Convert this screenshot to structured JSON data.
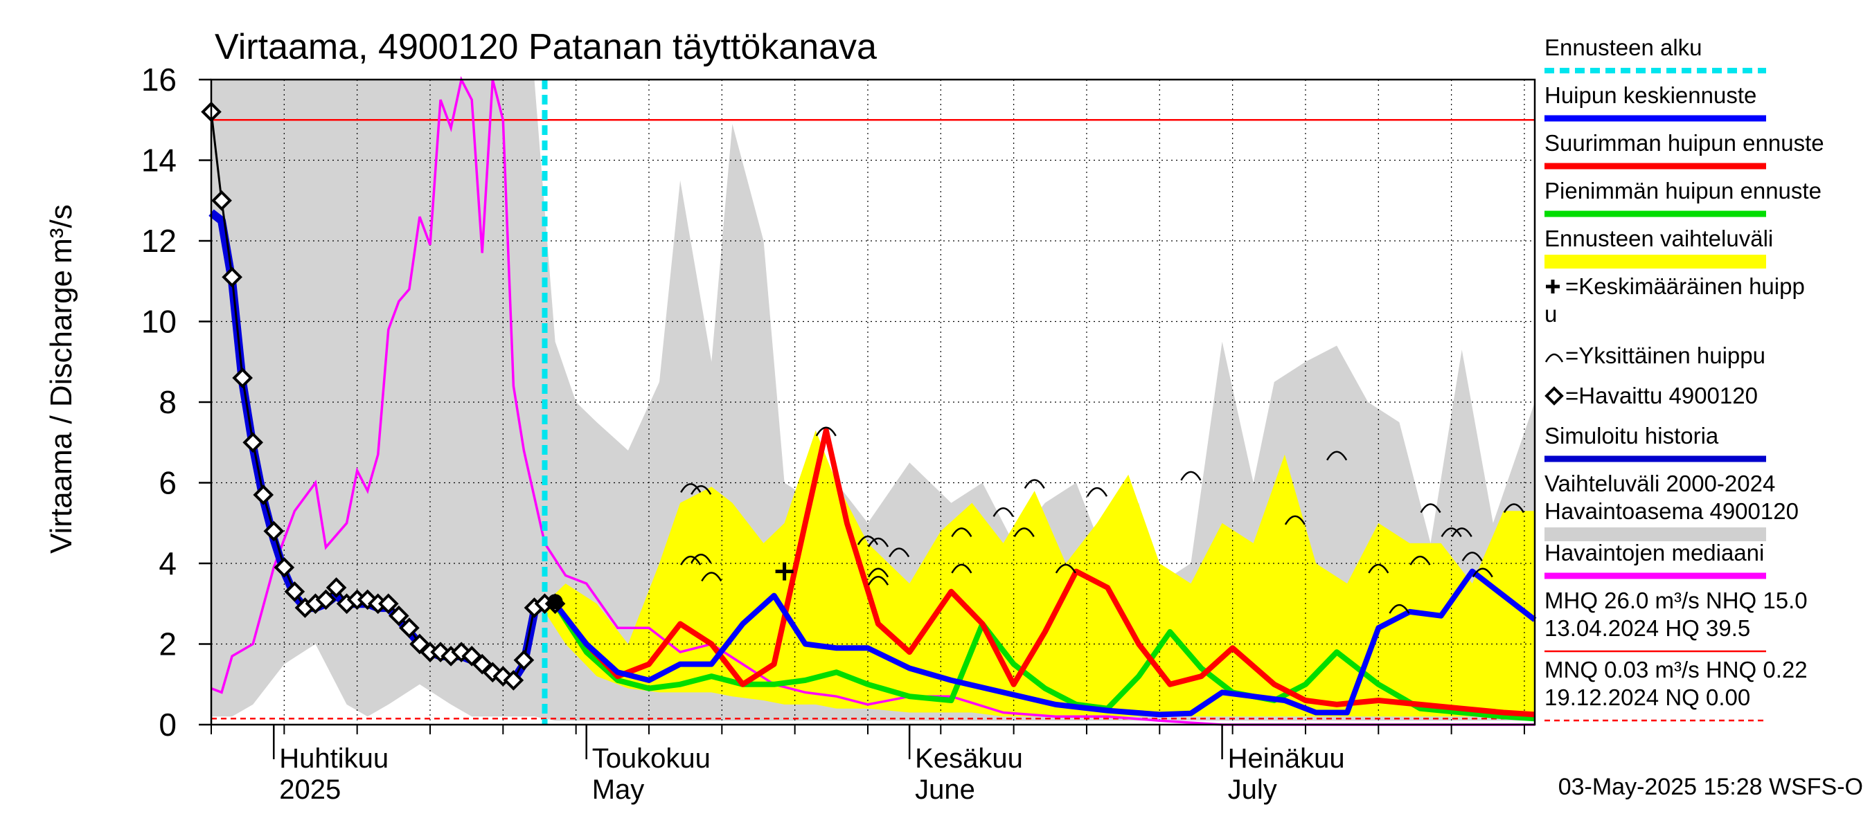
{
  "chart_data": {
    "type": "line",
    "title": "Virtaama, 4900120 Patanan täyttökanava",
    "ylabel": "Virtaama / Discharge",
    "yunit": "m³/s",
    "xlim": [
      "2025-03-26",
      "2025-07-31"
    ],
    "ylim": [
      0,
      16
    ],
    "yticks": [
      0,
      2,
      4,
      6,
      8,
      10,
      12,
      14,
      16
    ],
    "grid": true,
    "legend_position": "right",
    "month_labels": [
      {
        "fi": "Huhtikuu",
        "en": "2025",
        "date": "2025-04-01"
      },
      {
        "fi": "Toukokuu",
        "en": "May",
        "date": "2025-05-01"
      },
      {
        "fi": "Kesäkuu",
        "en": "June",
        "date": "2025-06-01"
      },
      {
        "fi": "Heinäkuu",
        "en": "July",
        "date": "2025-07-01"
      }
    ],
    "forecast_start": "2025-04-27",
    "reference_lines": {
      "upper_red": 15.0,
      "lower_red_dashed": 0.15
    },
    "legend": [
      {
        "label": "Ennusteen alku",
        "color": "#00e5ee",
        "style": "dashed"
      },
      {
        "label": "Huipun keskiennuste",
        "color": "#0000ff",
        "style": "solid"
      },
      {
        "label": "Suurimman huipun ennuste",
        "color": "#ff0000",
        "style": "solid"
      },
      {
        "label": "Pienimmän huipun ennuste",
        "color": "#00dd00",
        "style": "solid"
      },
      {
        "label": "Ennusteen vaihteluväli",
        "color": "#ffff00",
        "style": "band"
      },
      {
        "label": "+=Keskimääräinen huippu",
        "label_line1": "=Keskimääräinen huipp",
        "label_line2": "u",
        "symbol": "plus"
      },
      {
        "label": "=Yksittäinen huippu",
        "symbol": "arc"
      },
      {
        "label": "=Havaittu 4900120",
        "symbol": "diamond"
      },
      {
        "label": "Simuloitu historia",
        "color": "#0000cc",
        "style": "solid"
      },
      {
        "label_line1": "Vaihteluväli 2000-2024",
        "label_line2": " Havaintoasema 4900120",
        "color": "#d0d0d0",
        "style": "band"
      },
      {
        "label": "Havaintojen mediaani",
        "color": "#ff00ff",
        "style": "solid"
      },
      {
        "label_line1": "MHQ 26.0 m³/s NHQ 15.0",
        "label_line2": "13.04.2024 HQ 39.5",
        "color": "#ff0000",
        "style": "solid"
      },
      {
        "label_line1": "MNQ 0.03 m³/s HNQ 0.22",
        "label_line2": "19.12.2024 NQ 0.00",
        "color": "#ff0000",
        "style": "dashed"
      }
    ],
    "footer": "03-May-2025 15:28 WSFS-O",
    "series": {
      "historical_band": {
        "x": [
          "2025-03-26",
          "2025-03-27",
          "2025-03-28",
          "2025-03-30",
          "2025-04-02",
          "2025-04-05",
          "2025-04-08",
          "2025-04-10",
          "2025-04-12",
          "2025-04-15",
          "2025-04-18",
          "2025-04-20",
          "2025-04-22",
          "2025-04-24",
          "2025-04-26",
          "2025-04-28",
          "2025-04-30",
          "2025-05-02",
          "2025-05-05",
          "2025-05-08",
          "2025-05-10",
          "2025-05-13",
          "2025-05-15",
          "2025-05-18",
          "2025-05-20",
          "2025-05-23",
          "2025-05-25",
          "2025-05-28",
          "2025-06-01",
          "2025-06-05",
          "2025-06-08",
          "2025-06-11",
          "2025-06-14",
          "2025-06-17",
          "2025-06-20",
          "2025-06-23",
          "2025-06-25",
          "2025-06-28",
          "2025-07-01",
          "2025-07-04",
          "2025-07-06",
          "2025-07-09",
          "2025-07-12",
          "2025-07-15",
          "2025-07-18",
          "2025-07-21",
          "2025-07-24",
          "2025-07-27",
          "2025-07-31"
        ],
        "high": [
          16,
          16,
          16,
          16,
          16,
          16,
          16,
          16,
          16,
          16,
          16,
          16,
          16,
          16,
          16,
          16,
          16,
          16,
          16,
          16,
          16,
          16,
          16,
          16,
          16,
          16,
          16,
          16,
          16,
          16,
          16,
          16,
          16,
          16,
          16,
          16,
          16,
          16,
          16,
          16,
          16,
          16,
          16,
          16,
          16,
          16,
          16,
          16,
          16
        ],
        "low": [
          0.2,
          0.2,
          0.2,
          0.5,
          1.5,
          2.0,
          0.5,
          0.2,
          0.5,
          1.0,
          0.5,
          0.2,
          0.2,
          0.2,
          0.2,
          0.1,
          0.1,
          0.1,
          0.1,
          0.1,
          0.1,
          0.1,
          0.1,
          0.1,
          0.1,
          0.1,
          0.1,
          0.1,
          0.1,
          0.1,
          0.1,
          0.1,
          0.1,
          0.1,
          0.1,
          0.1,
          0.1,
          0.1,
          0.1,
          0.1,
          0.1,
          0.1,
          0.1,
          0.1,
          0.1,
          0.1,
          0.1,
          0.1,
          0.1
        ],
        "max_visible": [
          16,
          16,
          16,
          16,
          16,
          16,
          16,
          16,
          16,
          16,
          16,
          16,
          16,
          16,
          16,
          9.5,
          8.0,
          7.5,
          6.8,
          8.5,
          13.5,
          9.0,
          14.9,
          12.0,
          6.0,
          5.5,
          6.0,
          5.0,
          6.5,
          5.5,
          6.0,
          4.5,
          5.5,
          6.0,
          4.0,
          5.5,
          3.5,
          4.0,
          9.5,
          6.0,
          8.5,
          9.0,
          9.4,
          8.0,
          7.5,
          4.5,
          9.3,
          5.0,
          8.0
        ]
      },
      "forecast_band": {
        "x": [
          "2025-04-27",
          "2025-04-29",
          "2025-05-02",
          "2025-05-05",
          "2025-05-08",
          "2025-05-10",
          "2025-05-13",
          "2025-05-15",
          "2025-05-18",
          "2025-05-20",
          "2025-05-23",
          "2025-05-25",
          "2025-05-28",
          "2025-06-01",
          "2025-06-04",
          "2025-06-07",
          "2025-06-10",
          "2025-06-13",
          "2025-06-16",
          "2025-06-19",
          "2025-06-22",
          "2025-06-25",
          "2025-06-28",
          "2025-07-01",
          "2025-07-04",
          "2025-07-07",
          "2025-07-10",
          "2025-07-13",
          "2025-07-16",
          "2025-07-19",
          "2025-07-22",
          "2025-07-25",
          "2025-07-28",
          "2025-07-31"
        ],
        "high": [
          3.0,
          3.5,
          3.0,
          2.0,
          4.0,
          5.5,
          5.9,
          5.5,
          4.5,
          5.0,
          7.3,
          6.0,
          4.5,
          3.5,
          4.8,
          5.5,
          4.5,
          5.8,
          4.0,
          5.0,
          6.2,
          4.0,
          3.5,
          5.0,
          4.5,
          6.7,
          4.0,
          3.5,
          5.0,
          4.5,
          4.5,
          3.5,
          5.3,
          5.3
        ],
        "low": [
          2.8,
          2.0,
          1.2,
          0.9,
          0.8,
          0.8,
          0.8,
          0.7,
          0.6,
          0.5,
          0.5,
          0.4,
          0.4,
          0.3,
          0.3,
          0.3,
          0.2,
          0.2,
          0.2,
          0.2,
          0.2,
          0.2,
          0.2,
          0.2,
          0.2,
          0.2,
          0.2,
          0.2,
          0.2,
          0.2,
          0.2,
          0.2,
          0.2,
          0.2
        ]
      },
      "median_obs": {
        "x": [
          "2025-03-26",
          "2025-03-27",
          "2025-03-28",
          "2025-03-30",
          "2025-04-01",
          "2025-04-03",
          "2025-04-05",
          "2025-04-06",
          "2025-04-08",
          "2025-04-09",
          "2025-04-10",
          "2025-04-11",
          "2025-04-12",
          "2025-04-13",
          "2025-04-14",
          "2025-04-15",
          "2025-04-16",
          "2025-04-17",
          "2025-04-18",
          "2025-04-19",
          "2025-04-20",
          "2025-04-21",
          "2025-04-22",
          "2025-04-23",
          "2025-04-24",
          "2025-04-25",
          "2025-04-27",
          "2025-04-29",
          "2025-05-01",
          "2025-05-04",
          "2025-05-07",
          "2025-05-10",
          "2025-05-13",
          "2025-05-16",
          "2025-05-19",
          "2025-05-22",
          "2025-05-25",
          "2025-05-28",
          "2025-06-01",
          "2025-06-05",
          "2025-06-10",
          "2025-06-15",
          "2025-06-20",
          "2025-06-25",
          "2025-07-01",
          "2025-07-10",
          "2025-07-20",
          "2025-07-31"
        ],
        "values": [
          0.9,
          0.8,
          1.7,
          2.0,
          3.9,
          5.3,
          6.0,
          4.4,
          5.0,
          6.3,
          5.8,
          6.7,
          9.8,
          10.5,
          10.8,
          12.6,
          11.9,
          15.5,
          14.8,
          17.5,
          15.5,
          11.7,
          17.5,
          15.0,
          8.4,
          6.8,
          4.5,
          3.7,
          3.5,
          2.4,
          2.4,
          1.8,
          2.0,
          1.5,
          1.0,
          0.8,
          0.7,
          0.5,
          0.7,
          0.7,
          0.3,
          0.2,
          0.2,
          0.1,
          0.0,
          0.0,
          0.0,
          0.0
        ]
      },
      "observed": {
        "x": [
          "2025-03-26",
          "2025-03-27",
          "2025-03-28",
          "2025-03-29",
          "2025-03-30",
          "2025-03-31",
          "2025-04-01",
          "2025-04-02",
          "2025-04-03",
          "2025-04-04",
          "2025-04-05",
          "2025-04-06",
          "2025-04-07",
          "2025-04-08",
          "2025-04-09",
          "2025-04-10",
          "2025-04-11",
          "2025-04-12",
          "2025-04-13",
          "2025-04-14",
          "2025-04-15",
          "2025-04-16",
          "2025-04-17",
          "2025-04-18",
          "2025-04-19",
          "2025-04-20",
          "2025-04-21",
          "2025-04-22",
          "2025-04-23",
          "2025-04-24",
          "2025-04-25",
          "2025-04-26",
          "2025-04-27",
          "2025-04-28"
        ],
        "values": [
          15.2,
          13.0,
          11.1,
          8.6,
          7.0,
          5.7,
          4.8,
          3.9,
          3.3,
          2.9,
          3.0,
          3.1,
          3.4,
          3.0,
          3.1,
          3.1,
          3.0,
          3.0,
          2.7,
          2.4,
          2.0,
          1.8,
          1.8,
          1.7,
          1.8,
          1.7,
          1.5,
          1.3,
          1.2,
          1.1,
          1.6,
          2.9,
          3.0,
          3.0
        ]
      },
      "simulated_history": {
        "x": [
          "2025-03-26",
          "2025-03-27",
          "2025-03-28",
          "2025-03-29",
          "2025-03-30",
          "2025-03-31",
          "2025-04-01",
          "2025-04-02",
          "2025-04-03",
          "2025-04-04",
          "2025-04-05",
          "2025-04-06",
          "2025-04-07",
          "2025-04-08",
          "2025-04-09",
          "2025-04-10",
          "2025-04-11",
          "2025-04-12",
          "2025-04-13",
          "2025-04-14",
          "2025-04-15",
          "2025-04-16",
          "2025-04-17",
          "2025-04-18",
          "2025-04-19",
          "2025-04-20",
          "2025-04-21",
          "2025-04-22",
          "2025-04-23",
          "2025-04-24",
          "2025-04-25",
          "2025-04-26",
          "2025-04-27",
          "2025-04-28"
        ],
        "values": [
          12.7,
          12.5,
          11.0,
          8.5,
          6.9,
          5.6,
          4.6,
          3.8,
          3.2,
          2.9,
          2.9,
          3.0,
          3.2,
          3.0,
          3.0,
          3.0,
          2.9,
          2.9,
          2.6,
          2.3,
          2.0,
          1.8,
          1.7,
          1.7,
          1.7,
          1.6,
          1.5,
          1.3,
          1.2,
          1.1,
          1.5,
          2.8,
          3.0,
          3.0
        ]
      },
      "mean_peak_forecast": {
        "x": [
          "2025-04-28",
          "2025-05-01",
          "2025-05-04",
          "2025-05-07",
          "2025-05-10",
          "2025-05-13",
          "2025-05-16",
          "2025-05-19",
          "2025-05-22",
          "2025-05-25",
          "2025-05-28",
          "2025-06-01",
          "2025-06-05",
          "2025-06-10",
          "2025-06-15",
          "2025-06-20",
          "2025-06-25",
          "2025-06-28",
          "2025-07-01",
          "2025-07-04",
          "2025-07-07",
          "2025-07-10",
          "2025-07-13",
          "2025-07-16",
          "2025-07-19",
          "2025-07-22",
          "2025-07-25",
          "2025-07-28",
          "2025-07-31"
        ],
        "values": [
          3.0,
          2.0,
          1.3,
          1.1,
          1.5,
          1.5,
          2.5,
          3.2,
          2.0,
          1.9,
          1.9,
          1.4,
          1.1,
          0.8,
          0.5,
          0.35,
          0.25,
          0.28,
          0.8,
          0.7,
          0.6,
          0.3,
          0.3,
          2.4,
          2.8,
          2.7,
          3.8,
          3.2,
          2.6
        ]
      },
      "max_peak_forecast": {
        "x": [
          "2025-04-28",
          "2025-05-01",
          "2025-05-04",
          "2025-05-07",
          "2025-05-10",
          "2025-05-13",
          "2025-05-16",
          "2025-05-19",
          "2025-05-22",
          "2025-05-24",
          "2025-05-26",
          "2025-05-29",
          "2025-06-01",
          "2025-06-05",
          "2025-06-08",
          "2025-06-11",
          "2025-06-14",
          "2025-06-17",
          "2025-06-20",
          "2025-06-23",
          "2025-06-26",
          "2025-06-29",
          "2025-07-02",
          "2025-07-06",
          "2025-07-09",
          "2025-07-12",
          "2025-07-16",
          "2025-07-20",
          "2025-07-24",
          "2025-07-28",
          "2025-07-31"
        ],
        "values": [
          3.0,
          2.0,
          1.2,
          1.5,
          2.5,
          2.0,
          1.0,
          1.5,
          5.0,
          7.3,
          5.0,
          2.5,
          1.8,
          3.3,
          2.5,
          1.0,
          2.3,
          3.8,
          3.4,
          2.0,
          1.0,
          1.2,
          1.9,
          1.0,
          0.6,
          0.5,
          0.6,
          0.5,
          0.4,
          0.3,
          0.25
        ]
      },
      "min_peak_forecast": {
        "x": [
          "2025-04-28",
          "2025-05-01",
          "2025-05-04",
          "2025-05-07",
          "2025-05-10",
          "2025-05-13",
          "2025-05-16",
          "2025-05-19",
          "2025-05-22",
          "2025-05-25",
          "2025-05-28",
          "2025-06-01",
          "2025-06-05",
          "2025-06-08",
          "2025-06-11",
          "2025-06-14",
          "2025-06-17",
          "2025-06-20",
          "2025-06-23",
          "2025-06-26",
          "2025-06-29",
          "2025-07-02",
          "2025-07-06",
          "2025-07-09",
          "2025-07-12",
          "2025-07-16",
          "2025-07-20",
          "2025-07-24",
          "2025-07-28",
          "2025-07-31"
        ],
        "values": [
          3.0,
          1.8,
          1.1,
          0.9,
          1.0,
          1.2,
          1.0,
          1.0,
          1.1,
          1.3,
          1.0,
          0.7,
          0.6,
          2.5,
          1.5,
          0.9,
          0.5,
          0.4,
          1.2,
          2.3,
          1.4,
          0.8,
          0.6,
          1.0,
          1.8,
          1.0,
          0.4,
          0.3,
          0.2,
          0.15
        ]
      },
      "single_peaks": [
        {
          "x": "2025-05-11",
          "y": 5.9
        },
        {
          "x": "2025-05-12",
          "y": 5.85
        },
        {
          "x": "2025-05-11",
          "y": 4.1
        },
        {
          "x": "2025-05-12",
          "y": 4.15
        },
        {
          "x": "2025-05-13",
          "y": 3.7
        },
        {
          "x": "2025-05-24",
          "y": 7.3
        },
        {
          "x": "2025-05-28",
          "y": 4.6
        },
        {
          "x": "2025-05-29",
          "y": 4.55
        },
        {
          "x": "2025-05-31",
          "y": 4.3
        },
        {
          "x": "2025-05-29",
          "y": 3.8
        },
        {
          "x": "2025-05-29",
          "y": 3.6
        },
        {
          "x": "2025-06-06",
          "y": 4.8
        },
        {
          "x": "2025-06-06",
          "y": 3.9
        },
        {
          "x": "2025-06-10",
          "y": 5.3
        },
        {
          "x": "2025-06-12",
          "y": 4.8
        },
        {
          "x": "2025-06-13",
          "y": 6.0
        },
        {
          "x": "2025-06-16",
          "y": 3.9
        },
        {
          "x": "2025-06-19",
          "y": 5.8
        },
        {
          "x": "2025-06-28",
          "y": 6.2
        },
        {
          "x": "2025-07-08",
          "y": 5.1
        },
        {
          "x": "2025-07-12",
          "y": 6.7
        },
        {
          "x": "2025-07-16",
          "y": 3.9
        },
        {
          "x": "2025-07-18",
          "y": 2.9
        },
        {
          "x": "2025-07-20",
          "y": 4.1
        },
        {
          "x": "2025-07-21",
          "y": 5.4
        },
        {
          "x": "2025-07-23",
          "y": 4.8
        },
        {
          "x": "2025-07-24",
          "y": 4.8
        },
        {
          "x": "2025-07-25",
          "y": 4.2
        },
        {
          "x": "2025-07-26",
          "y": 3.8
        },
        {
          "x": "2025-07-29",
          "y": 5.4
        }
      ],
      "mean_peak_marker": {
        "x": "2025-05-20",
        "y": 3.8
      },
      "forecast_start_dot": {
        "x": "2025-04-28",
        "y": 3.05
      }
    }
  }
}
